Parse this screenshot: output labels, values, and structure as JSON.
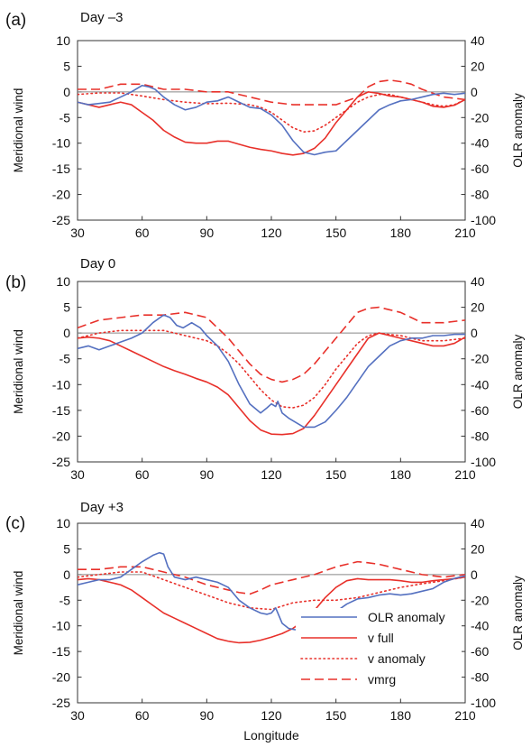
{
  "figure": {
    "xlabel": "Longitude",
    "ylabel_left": "Meridional wind",
    "ylabel_right": "OLR anomaly",
    "x_ticks": [
      30,
      60,
      90,
      120,
      150,
      180,
      210
    ],
    "y_left_ticks": [
      10,
      5,
      0,
      -5,
      -10,
      -15,
      -20,
      -25
    ],
    "y_right_ticks": [
      40,
      20,
      0,
      -20,
      -40,
      -60,
      -80,
      -100
    ],
    "legend": [
      {
        "label": "OLR anomaly",
        "color": "#5470c0",
        "style": "solid"
      },
      {
        "label": "v full",
        "color": "#e8302a",
        "style": "solid"
      },
      {
        "label": "v anomaly",
        "color": "#e8302a",
        "style": "dotted"
      },
      {
        "label": "vmrg",
        "color": "#e8302a",
        "style": "dashed"
      }
    ]
  },
  "chart_data": [
    {
      "type": "line",
      "panel_label": "(a)",
      "title": "Day –3",
      "xlim": [
        30,
        210
      ],
      "ylim_left": [
        -25,
        10
      ],
      "ylim_right": [
        -100,
        40
      ],
      "legend_shown": false,
      "series": [
        {
          "name": "OLR anomaly",
          "axis": "right",
          "color": "#5470c0",
          "style": "solid",
          "x": [
            30,
            35,
            40,
            45,
            50,
            55,
            60,
            63,
            66,
            70,
            75,
            80,
            85,
            90,
            95,
            100,
            105,
            110,
            115,
            120,
            125,
            130,
            135,
            140,
            145,
            150,
            155,
            160,
            165,
            170,
            175,
            180,
            185,
            190,
            195,
            200,
            205,
            210
          ],
          "y": [
            -8,
            -10,
            -9,
            -8,
            -4,
            0,
            5,
            4,
            2,
            -4,
            -10,
            -14,
            -12,
            -8,
            -7,
            -4,
            -8,
            -12,
            -13,
            -18,
            -26,
            -38,
            -47,
            -49,
            -47,
            -46,
            -38,
            -30,
            -22,
            -14,
            -10,
            -7,
            -6,
            -4,
            -2,
            -1,
            -2,
            -1
          ]
        },
        {
          "name": "v full",
          "axis": "left",
          "color": "#e8302a",
          "style": "solid",
          "x": [
            30,
            35,
            40,
            45,
            50,
            55,
            60,
            65,
            70,
            75,
            80,
            85,
            90,
            95,
            100,
            105,
            110,
            115,
            120,
            125,
            130,
            135,
            140,
            145,
            150,
            155,
            160,
            165,
            170,
            175,
            180,
            185,
            190,
            195,
            200,
            205,
            210
          ],
          "y": [
            -2,
            -2.5,
            -3,
            -2.5,
            -2,
            -2.5,
            -4,
            -5.5,
            -7.5,
            -8.8,
            -9.8,
            -10,
            -10,
            -9.6,
            -9.6,
            -10.2,
            -10.8,
            -11.2,
            -11.5,
            -12,
            -12.3,
            -12,
            -11,
            -9,
            -6,
            -3.5,
            -1,
            0,
            -0.3,
            -0.8,
            -1,
            -1.5,
            -2,
            -2.8,
            -3,
            -2.6,
            -1.5
          ]
        },
        {
          "name": "v anomaly",
          "axis": "left",
          "color": "#e8302a",
          "style": "dotted",
          "x": [
            30,
            40,
            50,
            60,
            70,
            80,
            90,
            100,
            110,
            115,
            120,
            125,
            130,
            135,
            140,
            145,
            150,
            155,
            160,
            165,
            170,
            175,
            180,
            185,
            190,
            195,
            200,
            205,
            210
          ],
          "y": [
            -0.5,
            -0.2,
            -0.2,
            -0.8,
            -1.5,
            -2,
            -2.3,
            -2.2,
            -2.5,
            -3,
            -4,
            -5.5,
            -7,
            -7.8,
            -7.6,
            -6.5,
            -5,
            -3.5,
            -2,
            -1,
            -0.5,
            -0.5,
            -1,
            -1.5,
            -2,
            -2.5,
            -2.8,
            -2.5,
            -1.5
          ]
        },
        {
          "name": "vmrg",
          "axis": "left",
          "color": "#e8302a",
          "style": "dashed",
          "x": [
            30,
            40,
            50,
            60,
            70,
            80,
            90,
            100,
            110,
            120,
            130,
            140,
            150,
            160,
            165,
            170,
            175,
            180,
            185,
            190,
            200,
            210
          ],
          "y": [
            0.5,
            0.5,
            1.5,
            1.5,
            0.5,
            0.5,
            0,
            0,
            -1,
            -2,
            -2.5,
            -2.5,
            -2.5,
            -1,
            1,
            2,
            2.3,
            2,
            1.5,
            0.5,
            -1,
            -1.5
          ]
        }
      ]
    },
    {
      "type": "line",
      "panel_label": "(b)",
      "title": "Day 0",
      "xlim": [
        30,
        210
      ],
      "ylim_left": [
        -25,
        10
      ],
      "ylim_right": [
        -100,
        40
      ],
      "legend_shown": false,
      "series": [
        {
          "name": "OLR anomaly",
          "axis": "right",
          "color": "#5470c0",
          "style": "solid",
          "x": [
            30,
            35,
            40,
            45,
            50,
            55,
            60,
            65,
            70,
            73,
            76,
            79,
            83,
            87,
            90,
            95,
            100,
            105,
            110,
            115,
            118,
            120,
            122,
            123,
            125,
            128,
            130,
            135,
            140,
            145,
            150,
            155,
            160,
            165,
            170,
            175,
            180,
            185,
            190,
            195,
            200,
            205,
            210
          ],
          "y": [
            -12,
            -10,
            -13,
            -10,
            -7,
            -4,
            0,
            8,
            14,
            12,
            6,
            4,
            8,
            4,
            -2,
            -10,
            -22,
            -40,
            -55,
            -62,
            -58,
            -55,
            -57,
            -53,
            -62,
            -66,
            -68,
            -73,
            -73,
            -69,
            -60,
            -50,
            -38,
            -26,
            -18,
            -10,
            -6,
            -4,
            -4,
            -2,
            -2,
            -1,
            -1
          ]
        },
        {
          "name": "v full",
          "axis": "left",
          "color": "#e8302a",
          "style": "solid",
          "x": [
            30,
            35,
            40,
            45,
            50,
            55,
            60,
            65,
            70,
            75,
            80,
            85,
            90,
            95,
            100,
            105,
            110,
            115,
            120,
            125,
            130,
            135,
            140,
            145,
            150,
            155,
            160,
            165,
            170,
            175,
            180,
            185,
            190,
            195,
            200,
            205,
            210
          ],
          "y": [
            -1,
            -0.8,
            -1,
            -1.5,
            -2.5,
            -3.5,
            -4.5,
            -5.5,
            -6.5,
            -7.3,
            -8,
            -8.8,
            -9.5,
            -10.5,
            -12,
            -14.5,
            -17,
            -18.8,
            -19.6,
            -19.7,
            -19.5,
            -18.5,
            -16,
            -13,
            -10,
            -7,
            -4,
            -1,
            0,
            -0.5,
            -1,
            -1.5,
            -2,
            -2.5,
            -2.5,
            -2,
            -0.8
          ]
        },
        {
          "name": "v anomaly",
          "axis": "left",
          "color": "#e8302a",
          "style": "dotted",
          "x": [
            30,
            40,
            50,
            60,
            70,
            80,
            90,
            95,
            100,
            105,
            110,
            115,
            120,
            125,
            130,
            135,
            140,
            145,
            150,
            155,
            160,
            165,
            170,
            175,
            180,
            185,
            190,
            200,
            210
          ],
          "y": [
            -1,
            0,
            0.5,
            0.5,
            0.5,
            -0.5,
            -1.5,
            -2.5,
            -4,
            -6,
            -8.5,
            -11,
            -13,
            -14.3,
            -14.5,
            -14,
            -12.5,
            -10,
            -7,
            -4.5,
            -2,
            -0.5,
            0,
            -0.3,
            -0.5,
            -1,
            -1.5,
            -1.5,
            -1
          ]
        },
        {
          "name": "vmrg",
          "axis": "left",
          "color": "#e8302a",
          "style": "dashed",
          "x": [
            30,
            40,
            50,
            60,
            70,
            80,
            85,
            90,
            95,
            100,
            105,
            110,
            115,
            120,
            125,
            130,
            135,
            140,
            145,
            150,
            155,
            160,
            165,
            170,
            175,
            180,
            185,
            190,
            200,
            210
          ],
          "y": [
            1,
            2.5,
            3,
            3.5,
            3.5,
            4,
            3.5,
            3,
            1,
            -1,
            -3.5,
            -6,
            -8,
            -9,
            -9.5,
            -9,
            -8,
            -6,
            -3.5,
            -1,
            1.5,
            4,
            4.8,
            5,
            4.5,
            4,
            3,
            2,
            2,
            2.5
          ]
        }
      ]
    },
    {
      "type": "line",
      "panel_label": "(c)",
      "title": "Day +3",
      "xlim": [
        30,
        210
      ],
      "ylim_left": [
        -25,
        10
      ],
      "ylim_right": [
        -100,
        40
      ],
      "legend_shown": true,
      "legend_position": "lower-right",
      "series": [
        {
          "name": "OLR anomaly",
          "axis": "right",
          "color": "#5470c0",
          "style": "solid",
          "x": [
            30,
            35,
            40,
            45,
            50,
            55,
            60,
            65,
            68,
            70,
            72,
            75,
            80,
            85,
            90,
            95,
            100,
            105,
            110,
            115,
            118,
            120,
            122,
            125,
            128,
            131,
            135,
            140,
            145,
            150,
            155,
            160,
            165,
            170,
            175,
            180,
            185,
            190,
            195,
            200,
            205,
            210
          ],
          "y": [
            -8,
            -6,
            -4,
            -4,
            -2,
            4,
            10,
            15,
            17,
            16,
            6,
            -2,
            -4,
            -2,
            -4,
            -6,
            -10,
            -20,
            -26,
            -30,
            -31,
            -30,
            -26,
            -38,
            -42,
            -43,
            -42,
            -40,
            -36,
            -29,
            -23,
            -19,
            -18,
            -16,
            -15,
            -16,
            -15,
            -13,
            -11,
            -6,
            -3,
            -1
          ]
        },
        {
          "name": "v full",
          "axis": "left",
          "color": "#e8302a",
          "style": "solid",
          "x": [
            30,
            35,
            40,
            45,
            50,
            55,
            60,
            65,
            70,
            75,
            80,
            85,
            90,
            95,
            100,
            105,
            110,
            115,
            120,
            125,
            130,
            135,
            140,
            145,
            150,
            155,
            160,
            165,
            170,
            175,
            180,
            185,
            190,
            195,
            200,
            205,
            210
          ],
          "y": [
            -1,
            -0.8,
            -1,
            -1.5,
            -2,
            -3,
            -4.5,
            -6,
            -7.5,
            -8.5,
            -9.5,
            -10.5,
            -11.5,
            -12.5,
            -13,
            -13.3,
            -13.2,
            -12.8,
            -12.2,
            -11.5,
            -10.5,
            -9,
            -7,
            -4.5,
            -2.5,
            -1.2,
            -0.8,
            -1,
            -1,
            -1,
            -1.2,
            -1.5,
            -1.5,
            -1.2,
            -1,
            -0.8,
            -0.5
          ]
        },
        {
          "name": "v anomaly",
          "axis": "left",
          "color": "#e8302a",
          "style": "dotted",
          "x": [
            30,
            40,
            50,
            60,
            70,
            80,
            90,
            100,
            110,
            120,
            130,
            140,
            150,
            160,
            170,
            180,
            190,
            200,
            210
          ],
          "y": [
            -0.5,
            0,
            0.5,
            0.5,
            -1,
            -2.5,
            -4,
            -5.5,
            -6.5,
            -6.8,
            -5.5,
            -5,
            -5,
            -4.5,
            -3.5,
            -2.5,
            -1.8,
            -1.2,
            -0.5
          ]
        },
        {
          "name": "vmrg",
          "axis": "left",
          "color": "#e8302a",
          "style": "dashed",
          "x": [
            30,
            40,
            50,
            60,
            70,
            80,
            90,
            100,
            105,
            110,
            115,
            120,
            130,
            140,
            150,
            160,
            165,
            170,
            175,
            180,
            190,
            200,
            210
          ],
          "y": [
            1,
            1,
            1.5,
            1.5,
            0.5,
            -0.5,
            -2,
            -3,
            -3.5,
            -3.8,
            -3,
            -2,
            -1,
            0,
            1.5,
            2.5,
            2.3,
            2,
            1.5,
            1,
            0,
            -0.5,
            0
          ]
        }
      ]
    }
  ]
}
